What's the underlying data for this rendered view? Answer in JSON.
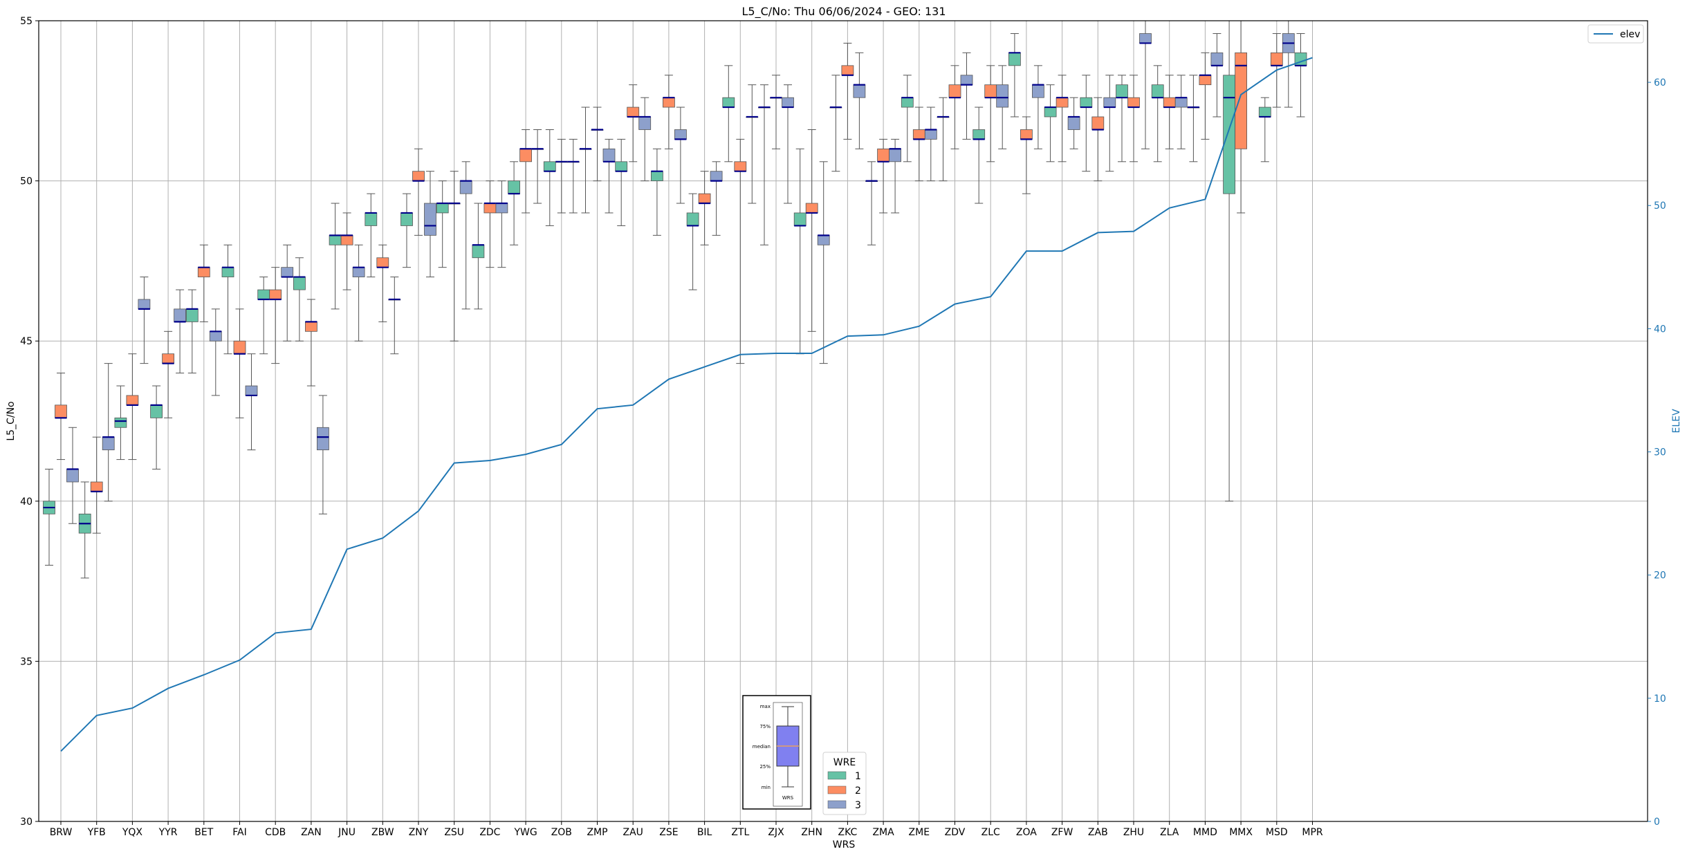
{
  "chart_data": {
    "type": "box",
    "title": "L5_C/No: Thu 06/06/2024 - GEO: 131",
    "xlabel": "WRS",
    "ylabel": "L5_C/No",
    "y2label": "ELEV",
    "ylim": [
      30,
      55
    ],
    "y2lim": [
      0,
      65
    ],
    "yticks": [
      30,
      35,
      40,
      45,
      50,
      55
    ],
    "y2ticks": [
      0,
      10,
      20,
      30,
      40,
      50,
      60
    ],
    "grid": true,
    "categories": [
      "BRW",
      "YFB",
      "YQX",
      "YYR",
      "BET",
      "FAI",
      "CDB",
      "ZAN",
      "JNU",
      "ZBW",
      "ZNY",
      "ZSU",
      "ZDC",
      "YWG",
      "ZOB",
      "ZMP",
      "ZAU",
      "ZSE",
      "BIL",
      "ZTL",
      "ZJX",
      "ZHN",
      "ZKC",
      "ZMA",
      "ZME",
      "ZDV",
      "ZLC",
      "ZOA",
      "ZFW",
      "ZAB",
      "ZHU",
      "ZLA",
      "MMD",
      "MMX",
      "MSD",
      "MPR"
    ],
    "colors": {
      "1": "#66c2a5",
      "2": "#fc8d62",
      "3": "#8da0cb",
      "elev": "#1f77b4",
      "median": "#00008b"
    },
    "legend_hue": {
      "title": "WRE",
      "entries": [
        "1",
        "2",
        "3"
      ],
      "location": "bottom-center"
    },
    "legend_line": {
      "entries": [
        "elev"
      ],
      "location": "top-right"
    },
    "key_labels": [
      "max",
      "75%",
      "median",
      "25%",
      "min",
      "WRS"
    ],
    "boxes": {
      "1": [
        [
          38.0,
          39.6,
          39.8,
          40.0,
          41.0
        ],
        [
          37.6,
          39.0,
          39.3,
          39.6,
          40.6
        ],
        [
          41.3,
          42.3,
          42.5,
          42.6,
          43.6
        ],
        [
          41.0,
          42.6,
          43.0,
          43.0,
          43.6
        ],
        [
          44.0,
          45.6,
          46.0,
          46.0,
          46.6
        ],
        [
          44.6,
          47.0,
          47.3,
          47.3,
          48.0
        ],
        [
          44.6,
          46.3,
          46.3,
          46.6,
          47.0
        ],
        [
          45.0,
          46.6,
          47.0,
          47.0,
          47.6
        ],
        [
          46.0,
          48.0,
          48.3,
          48.3,
          49.3
        ],
        [
          47.0,
          48.6,
          49.0,
          49.0,
          49.6
        ],
        [
          47.3,
          48.6,
          49.0,
          49.0,
          49.6
        ],
        [
          47.3,
          49.0,
          49.3,
          49.3,
          50.0
        ],
        [
          46.0,
          47.6,
          48.0,
          48.0,
          49.3
        ],
        [
          48.0,
          49.6,
          49.6,
          50.0,
          50.6
        ],
        [
          48.6,
          50.3,
          50.3,
          50.6,
          51.6
        ],
        [
          49.0,
          51.0,
          51.0,
          51.0,
          52.3
        ],
        [
          48.6,
          50.3,
          50.3,
          50.6,
          51.3
        ],
        [
          48.3,
          50.0,
          50.3,
          50.3,
          51.0
        ],
        [
          46.6,
          48.6,
          48.6,
          49.0,
          49.6
        ],
        [
          50.6,
          52.3,
          52.3,
          52.6,
          53.6
        ],
        [
          48.0,
          52.3,
          52.3,
          52.3,
          53.0
        ],
        [
          44.6,
          48.6,
          48.6,
          49.0,
          51.0
        ],
        [
          50.3,
          52.3,
          52.3,
          52.3,
          53.3
        ],
        [
          48.0,
          50.0,
          50.0,
          50.0,
          50.6
        ],
        [
          50.6,
          52.3,
          52.6,
          52.6,
          53.3
        ],
        [
          50.0,
          52.0,
          52.0,
          52.0,
          52.6
        ],
        [
          49.3,
          51.3,
          51.3,
          51.6,
          52.3
        ],
        [
          52.0,
          53.6,
          54.0,
          54.0,
          54.6
        ],
        [
          50.6,
          52.0,
          52.3,
          52.3,
          53.0
        ],
        [
          50.3,
          52.3,
          52.3,
          52.6,
          53.3
        ],
        [
          50.6,
          52.6,
          52.6,
          53.0,
          53.3
        ],
        [
          50.6,
          52.6,
          52.6,
          53.0,
          53.6
        ],
        [
          50.6,
          52.3,
          52.3,
          52.3,
          53.3
        ],
        [
          40.0,
          49.6,
          52.6,
          53.3,
          55.0
        ],
        [
          50.6,
          52.0,
          52.0,
          52.3,
          52.6
        ],
        [
          52.0,
          53.6,
          53.6,
          54.0,
          54.6
        ]
      ],
      "2": [
        [
          41.3,
          42.6,
          42.6,
          43.0,
          44.0
        ],
        [
          39.0,
          40.3,
          40.3,
          40.6,
          42.0
        ],
        [
          41.3,
          43.0,
          43.0,
          43.3,
          44.6
        ],
        [
          42.6,
          44.3,
          44.3,
          44.6,
          45.3
        ],
        [
          45.6,
          47.0,
          47.3,
          47.3,
          48.0
        ],
        [
          42.6,
          44.6,
          44.6,
          45.0,
          46.0
        ],
        [
          44.3,
          46.3,
          46.3,
          46.6,
          47.3
        ],
        [
          43.6,
          45.3,
          45.6,
          45.6,
          46.3
        ],
        [
          46.6,
          48.0,
          48.3,
          48.3,
          49.0
        ],
        [
          45.6,
          47.3,
          47.3,
          47.6,
          48.0
        ],
        [
          48.3,
          50.0,
          50.0,
          50.3,
          51.0
        ],
        [
          45.0,
          49.3,
          49.3,
          49.3,
          50.3
        ],
        [
          47.3,
          49.0,
          49.3,
          49.3,
          50.0
        ],
        [
          49.0,
          50.6,
          51.0,
          51.0,
          51.6
        ],
        [
          49.0,
          50.6,
          50.6,
          50.6,
          51.3
        ],
        [
          50.0,
          51.6,
          51.6,
          51.6,
          52.3
        ],
        [
          50.6,
          52.0,
          52.0,
          52.3,
          53.0
        ],
        [
          51.0,
          52.3,
          52.6,
          52.6,
          53.3
        ],
        [
          48.0,
          49.3,
          49.3,
          49.6,
          50.3
        ],
        [
          44.3,
          50.3,
          50.3,
          50.6,
          51.3
        ],
        [
          51.0,
          52.6,
          52.6,
          52.6,
          53.3
        ],
        [
          45.3,
          49.0,
          49.0,
          49.3,
          51.6
        ],
        [
          51.3,
          53.3,
          53.3,
          53.6,
          54.3
        ],
        [
          49.0,
          50.6,
          50.6,
          51.0,
          51.3
        ],
        [
          50.0,
          51.3,
          51.3,
          51.6,
          52.3
        ],
        [
          51.0,
          52.6,
          52.6,
          53.0,
          53.6
        ],
        [
          50.6,
          52.6,
          52.6,
          53.0,
          53.6
        ],
        [
          49.6,
          51.3,
          51.3,
          51.6,
          52.0
        ],
        [
          50.6,
          52.3,
          52.6,
          52.6,
          53.3
        ],
        [
          50.0,
          51.6,
          51.6,
          52.0,
          52.6
        ],
        [
          50.6,
          52.3,
          52.3,
          52.6,
          53.3
        ],
        [
          51.0,
          52.3,
          52.3,
          52.6,
          53.3
        ],
        [
          51.3,
          53.0,
          53.3,
          53.3,
          54.0
        ],
        [
          49.0,
          51.0,
          53.6,
          54.0,
          55.0
        ],
        [
          52.3,
          53.6,
          53.6,
          54.0,
          54.6
        ]
      ],
      "3": [
        [
          39.3,
          40.6,
          41.0,
          41.0,
          42.3
        ],
        [
          40.0,
          41.6,
          42.0,
          42.0,
          44.3
        ],
        [
          44.3,
          46.0,
          46.0,
          46.3,
          47.0
        ],
        [
          44.0,
          45.6,
          45.6,
          46.0,
          46.6
        ],
        [
          43.3,
          45.0,
          45.3,
          45.3,
          46.0
        ],
        [
          41.6,
          43.3,
          43.3,
          43.6,
          44.6
        ],
        [
          45.0,
          47.0,
          47.0,
          47.3,
          48.0
        ],
        [
          39.6,
          41.6,
          42.0,
          42.3,
          43.3
        ],
        [
          45.0,
          47.0,
          47.3,
          47.3,
          48.0
        ],
        [
          44.6,
          46.3,
          46.3,
          46.3,
          47.0
        ],
        [
          47.0,
          48.3,
          48.6,
          49.3,
          50.3
        ],
        [
          46.0,
          49.6,
          50.0,
          50.0,
          50.6
        ],
        [
          47.3,
          49.0,
          49.3,
          49.3,
          50.0
        ],
        [
          49.3,
          51.0,
          51.0,
          51.0,
          51.6
        ],
        [
          49.0,
          50.6,
          50.6,
          50.6,
          51.3
        ],
        [
          49.0,
          50.6,
          50.6,
          51.0,
          51.3
        ],
        [
          50.0,
          51.6,
          52.0,
          52.0,
          52.6
        ],
        [
          49.3,
          51.3,
          51.3,
          51.6,
          52.3
        ],
        [
          48.3,
          50.0,
          50.0,
          50.3,
          50.6
        ],
        [
          49.3,
          52.0,
          52.0,
          52.0,
          53.0
        ],
        [
          49.3,
          52.3,
          52.3,
          52.6,
          53.0
        ],
        [
          44.3,
          48.0,
          48.3,
          48.3,
          50.6
        ],
        [
          51.0,
          52.6,
          53.0,
          53.0,
          54.0
        ],
        [
          49.0,
          50.6,
          51.0,
          51.0,
          51.3
        ],
        [
          50.0,
          51.3,
          51.6,
          51.6,
          52.3
        ],
        [
          51.3,
          53.0,
          53.0,
          53.3,
          54.0
        ],
        [
          51.0,
          52.3,
          52.6,
          53.0,
          53.6
        ],
        [
          51.0,
          52.6,
          53.0,
          53.0,
          53.6
        ],
        [
          51.0,
          51.6,
          52.0,
          52.0,
          52.6
        ],
        [
          50.3,
          52.3,
          52.3,
          52.6,
          53.3
        ],
        [
          51.0,
          54.3,
          54.3,
          54.6,
          55.0
        ],
        [
          51.0,
          52.3,
          52.6,
          52.6,
          53.3
        ],
        [
          52.0,
          53.6,
          53.6,
          54.0,
          54.6
        ],
        [
          52.3,
          54.0,
          54.3,
          54.6,
          55.0
        ]
      ]
    },
    "box_groups": {
      "1": [
        "BRW",
        "YFB",
        "YQX",
        "YYR",
        "BET",
        "FAI",
        "CDB",
        "ZAN",
        "JNU",
        "ZBW",
        "ZNY",
        "ZSU",
        "ZDC",
        "YWG",
        "ZOB",
        "ZMP",
        "ZAU",
        "ZSE",
        "BIL",
        "ZTL",
        "ZJX",
        "ZHN",
        "ZKC",
        "ZMA",
        "ZME",
        "ZDV",
        "ZLC",
        "ZOA",
        "ZFW",
        "ZAB",
        "ZHU",
        "ZLA",
        "MMD",
        "MMX",
        "MSD",
        "MPR"
      ],
      "2": [
        "BRW",
        "YFB",
        "YQX",
        "YYR",
        "BET",
        "FAI",
        "CDB",
        "ZAN",
        "JNU",
        "ZBW",
        "ZNY",
        "ZSU",
        "ZDC",
        "YWG",
        "ZOB",
        "ZMP",
        "ZAU",
        "ZSE",
        "BIL",
        "ZTL",
        "ZJX",
        "ZHN",
        "ZKC",
        "ZMA",
        "ZME",
        "ZDV",
        "ZLC",
        "ZOA",
        "ZFW",
        "ZAB",
        "ZHU",
        "ZLA",
        "MMD",
        "MMX",
        "MSD"
      ],
      "3": [
        "BRW",
        "YFB",
        "YQX",
        "YYR",
        "BET",
        "FAI",
        "CDB",
        "ZAN",
        "JNU",
        "ZBW",
        "ZNY",
        "ZSU",
        "ZDC",
        "YWG",
        "ZOB",
        "ZMP",
        "ZAU",
        "ZSE",
        "BIL",
        "ZTL",
        "ZJX",
        "ZHN",
        "ZKC",
        "ZMA",
        "ZME",
        "ZDV",
        "ZLC",
        "ZOA",
        "ZFW",
        "ZAB",
        "ZHU",
        "ZLA",
        "MMD",
        "MSD"
      ]
    },
    "elev": [
      5.7,
      8.6,
      9.2,
      10.8,
      11.9,
      13.1,
      15.3,
      15.6,
      22.1,
      23.0,
      25.2,
      29.1,
      29.3,
      29.8,
      30.6,
      33.5,
      33.8,
      35.9,
      36.9,
      37.9,
      38.0,
      38.0,
      39.4,
      39.5,
      40.2,
      42.0,
      42.6,
      46.3,
      46.3,
      47.8,
      47.9,
      49.8,
      50.5,
      59.0,
      61.0,
      62.0
    ]
  }
}
